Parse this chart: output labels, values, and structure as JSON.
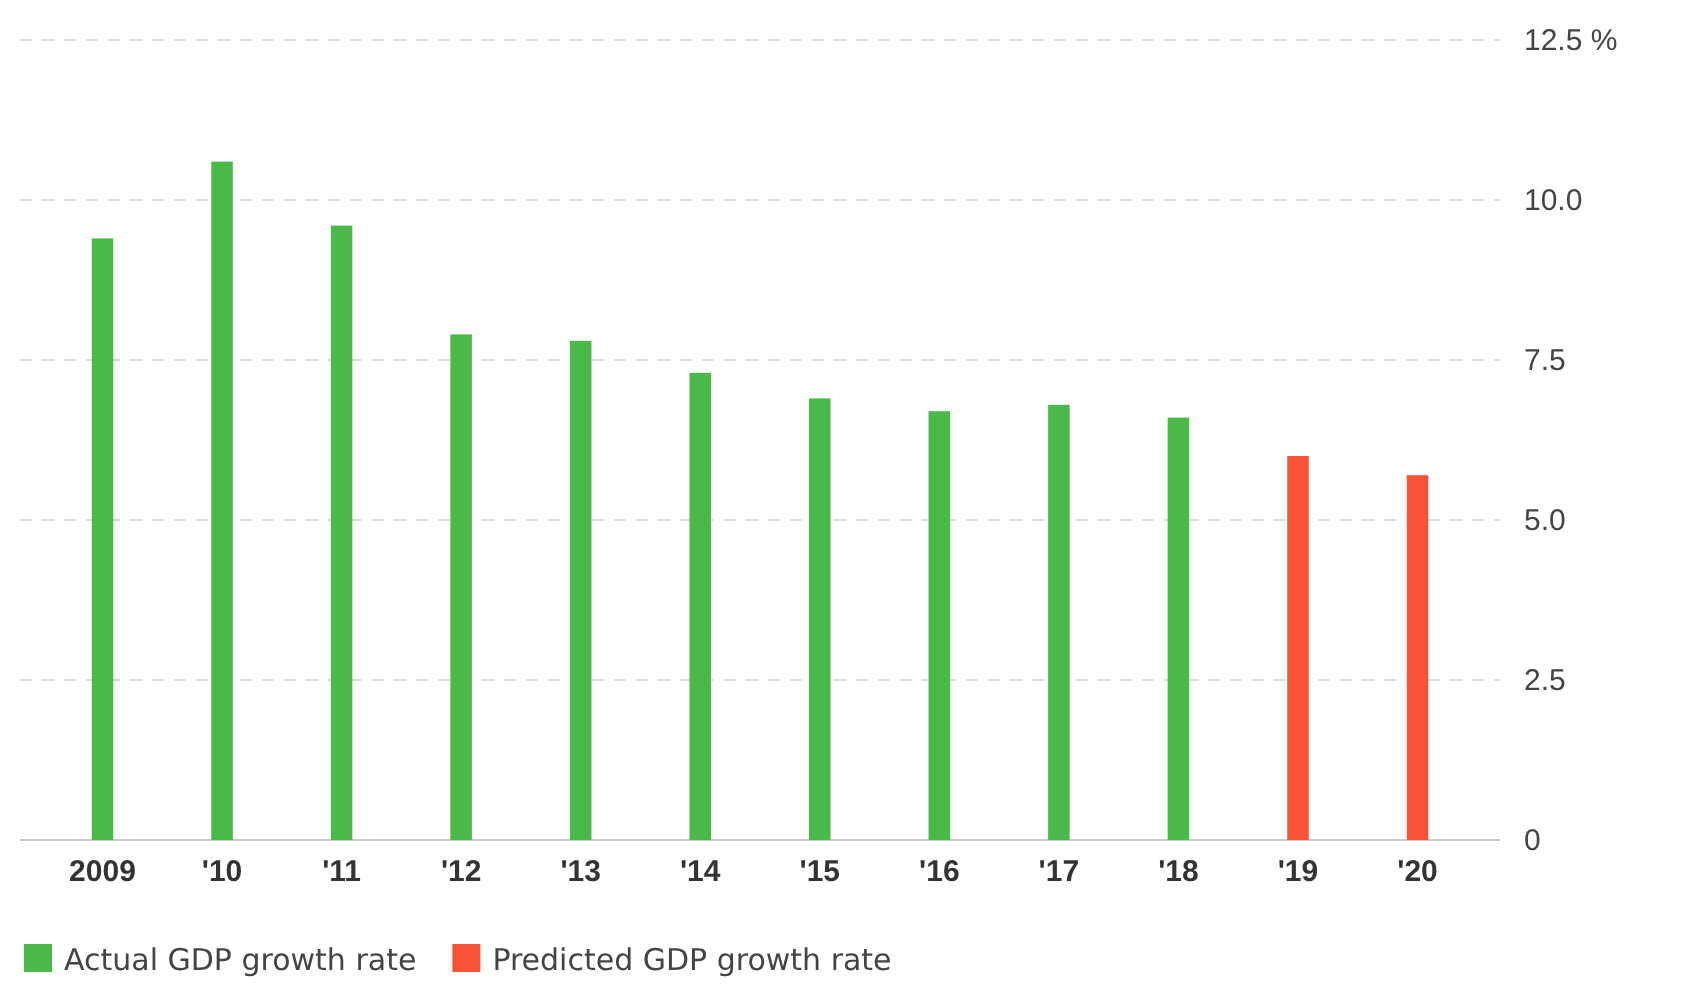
{
  "chart_data": {
    "type": "bar",
    "categories": [
      "2009",
      "'10",
      "'11",
      "'12",
      "'13",
      "'14",
      "'15",
      "'16",
      "'17",
      "'18",
      "'19",
      "'20"
    ],
    "series": [
      {
        "name": "Actual GDP growth rate",
        "color": "#4cb849",
        "values": [
          9.4,
          10.6,
          9.6,
          7.9,
          7.8,
          7.3,
          6.9,
          6.7,
          6.8,
          6.6,
          null,
          null
        ]
      },
      {
        "name": "Predicted GDP growth rate",
        "color": "#fa5237",
        "values": [
          null,
          null,
          null,
          null,
          null,
          null,
          null,
          null,
          null,
          null,
          6.0,
          5.7
        ]
      }
    ],
    "ylim": [
      0,
      12.5
    ],
    "yticks": [
      0,
      2.5,
      {
        "value": 5,
        "label": "5.0"
      },
      7.5,
      {
        "value": 10,
        "label": "10.0"
      },
      {
        "value": 12.5,
        "label": "12.5 %"
      }
    ],
    "grid": "y",
    "legend": "bottom left"
  }
}
